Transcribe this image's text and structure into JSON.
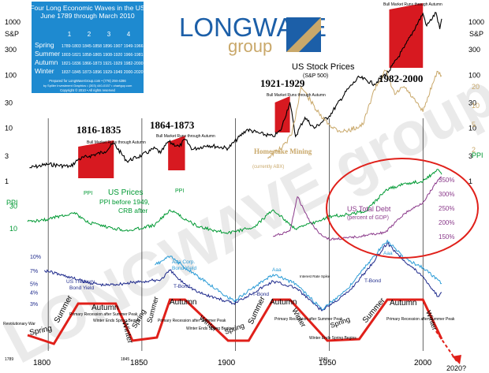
{
  "legend_box": {
    "title1": "Four Long Economic Waves in the US",
    "title2": "June 1789 through March 2010",
    "col_headers": [
      "1",
      "2",
      "3",
      "4"
    ],
    "rows": [
      {
        "season": "Spring",
        "years": "1789-1803 1845-1858 1896-1907 1949-1966"
      },
      {
        "season": "Summer",
        "years": "1803-1821 1858-1865 1908-1920 1966-1981"
      },
      {
        "season": "Autumn",
        "years": "1821-1836 1866-1873 1921-1929 1982-2000"
      },
      {
        "season": "Winter",
        "years": "1837-1845 1873-1896 1929-1949 2000-2020?"
      }
    ],
    "prepared": "Prepared for LongWaveGroup.com • (778) 294-4286",
    "by": "by Spiller Investment Graphics • (303) 440-0157 • chartguy.com",
    "copyright": "Copyright © 2010 • All rights reserved"
  },
  "brand": {
    "name1": "LONGWAVE",
    "name2": "group",
    "watermark": "LONGWAVE group"
  },
  "labels": {
    "stock_title": "US Stock Prices",
    "stock_sub": "(S&P 500)",
    "sp_left": "S&P",
    "sp_right": "S&P",
    "e1816": "1816-1835",
    "e1864": "1864-1873",
    "e1921": "1921-1929",
    "e1982": "1982-2000",
    "bull": "Bull Market Runs through Autumn",
    "homestake": "Homestake Mining",
    "homestake_sub": "(currently ABX)",
    "us_prices": "US Prices",
    "ppi_before": "PPI before 1949,",
    "crb_after": "CRB after",
    "ppi_left": "PPI",
    "ppi_right": "PPI",
    "ppi_mid1": "PPI",
    "ppi_mid2": "PPI",
    "debt": "US Total Debt",
    "debt_sub": "(percent of GDP)",
    "treasury": "US Treasury",
    "treasury2": "Bond Yield",
    "aaa": "Aaa",
    "aaa_corp": "Aaa Corp.",
    "bond_yield": "Bond Yield",
    "tbond": "T-Bond",
    "interest": "Interest Rate Spike",
    "revolutionary": "Revolutionary War",
    "winter_ends": "Winter Ends Spring Begins",
    "primary": "Primary Recession after Summer Peak",
    "arrow_2020": "2020?"
  },
  "seasons_text": {
    "spring": "Spring",
    "summer": "Summer",
    "autumn": "Autumn",
    "winter": "Winter"
  },
  "chart_data": {
    "type": "line",
    "x_range": [
      1789,
      2010
    ],
    "x_ticks": [
      "1789",
      "1800",
      "1845",
      "1850",
      "1900",
      "1949",
      "1950",
      "2000"
    ],
    "series": [
      {
        "name": "US Stock Prices (S&P 500)",
        "color": "#000000",
        "y_scale": "log",
        "left_ticks": [
          "1000",
          "300",
          "100",
          "30",
          "10",
          "3",
          "1"
        ],
        "right_ticks": [
          "1000",
          "300",
          "100",
          "30",
          "10",
          "3",
          "1"
        ],
        "points": [
          [
            1790,
            1.8
          ],
          [
            1800,
            2.1
          ],
          [
            1812,
            1.9
          ],
          [
            1816,
            2.6
          ],
          [
            1822,
            3.0
          ],
          [
            1830,
            3.6
          ],
          [
            1835,
            5.2
          ],
          [
            1842,
            2.4
          ],
          [
            1850,
            3.1
          ],
          [
            1857,
            4.2
          ],
          [
            1860,
            3.4
          ],
          [
            1864,
            5.6
          ],
          [
            1870,
            4.5
          ],
          [
            1873,
            6.2
          ],
          [
            1877,
            4.0
          ],
          [
            1885,
            4.8
          ],
          [
            1896,
            4.2
          ],
          [
            1906,
            9.5
          ],
          [
            1913,
            8.0
          ],
          [
            1920,
            7.0
          ],
          [
            1924,
            9.0
          ],
          [
            1929,
            31
          ],
          [
            1932,
            7.0
          ],
          [
            1937,
            16
          ],
          [
            1942,
            10
          ],
          [
            1950,
            17
          ],
          [
            1960,
            55
          ],
          [
            1966,
            92
          ],
          [
            1974,
            68
          ],
          [
            1982,
            120
          ],
          [
            1990,
            330
          ],
          [
            2000,
            1450
          ],
          [
            2002,
            850
          ],
          [
            2007,
            1500
          ],
          [
            2009,
            740
          ],
          [
            2010,
            1150
          ]
        ]
      },
      {
        "name": "Homestake Mining",
        "color": "#c9a86a",
        "y_scale": "log",
        "right_ticks": [
          "20",
          "10",
          "5",
          "2"
        ],
        "points": [
          [
            1917,
            1.5
          ],
          [
            1925,
            2.2
          ],
          [
            1930,
            3.5
          ],
          [
            1935,
            20
          ],
          [
            1940,
            12
          ],
          [
            1945,
            7
          ],
          [
            1950,
            5
          ],
          [
            1955,
            4
          ],
          [
            1960,
            4
          ],
          [
            1968,
            5
          ],
          [
            1974,
            18
          ],
          [
            1980,
            36
          ],
          [
            1985,
            15
          ],
          [
            1990,
            20
          ],
          [
            2000,
            8
          ],
          [
            2005,
            22
          ],
          [
            2008,
            35
          ],
          [
            2010,
            30
          ]
        ]
      },
      {
        "name": "US Prices (PPI/CRB)",
        "color": "#009933",
        "y_scale": "log",
        "left_ticks": [
          "30",
          "10"
        ],
        "right_ticks": [
          "5",
          "2"
        ],
        "points": [
          [
            1789,
            14
          ],
          [
            1800,
            16
          ],
          [
            1814,
            22
          ],
          [
            1820,
            14
          ],
          [
            1830,
            11
          ],
          [
            1843,
            9
          ],
          [
            1857,
            12
          ],
          [
            1865,
            25
          ],
          [
            1880,
            11
          ],
          [
            1896,
            8
          ],
          [
            1910,
            11
          ],
          [
            1920,
            25
          ],
          [
            1932,
            10
          ],
          [
            1945,
            15
          ],
          [
            1950,
            18
          ],
          [
            1960,
            20
          ],
          [
            1970,
            24
          ],
          [
            1980,
            65
          ],
          [
            1990,
            90
          ],
          [
            2000,
            100
          ],
          [
            2008,
            180
          ],
          [
            2010,
            140
          ]
        ]
      },
      {
        "name": "US Total Debt (percent of GDP)",
        "color": "#8b3a8b",
        "right_ticks": [
          "350%",
          "300%",
          "250%",
          "200%",
          "150%"
        ],
        "points": [
          [
            1920,
            150
          ],
          [
            1929,
            170
          ],
          [
            1933,
            290
          ],
          [
            1940,
            200
          ],
          [
            1945,
            160
          ],
          [
            1950,
            140
          ],
          [
            1960,
            145
          ],
          [
            1970,
            155
          ],
          [
            1980,
            165
          ],
          [
            1990,
            230
          ],
          [
            2000,
            270
          ],
          [
            2008,
            350
          ],
          [
            2010,
            360
          ]
        ]
      },
      {
        "name": "US Treasury Bond Yield",
        "color": "#1e2a8c",
        "left_ticks": [
          "10%",
          "7%",
          "5%",
          "4%",
          "3%"
        ],
        "points": [
          [
            1798,
            7
          ],
          [
            1810,
            6
          ],
          [
            1820,
            5.2
          ],
          [
            1830,
            4.8
          ],
          [
            1840,
            5
          ],
          [
            1860,
            5.5
          ],
          [
            1865,
            7
          ],
          [
            1870,
            5.5
          ],
          [
            1880,
            4
          ],
          [
            1899,
            3
          ],
          [
            1920,
            5.3
          ],
          [
            1932,
            4.5
          ],
          [
            1946,
            2.5
          ],
          [
            1960,
            4
          ],
          [
            1970,
            7
          ],
          [
            1981,
            14
          ],
          [
            1990,
            9
          ],
          [
            2000,
            6
          ],
          [
            2008,
            3.6
          ],
          [
            2010,
            4
          ]
        ]
      },
      {
        "name": "Aaa Corp. Bond Yield",
        "color": "#2a9bd6",
        "points": [
          [
            1857,
            8
          ],
          [
            1865,
            10
          ],
          [
            1875,
            7
          ],
          [
            1899,
            3.2
          ],
          [
            1920,
            6.3
          ],
          [
            1932,
            5
          ],
          [
            1946,
            2.6
          ],
          [
            1960,
            4.4
          ],
          [
            1970,
            8
          ],
          [
            1981,
            15
          ],
          [
            1990,
            9.5
          ],
          [
            2000,
            7.5
          ],
          [
            2008,
            5.5
          ],
          [
            2010,
            5
          ]
        ]
      }
    ]
  }
}
